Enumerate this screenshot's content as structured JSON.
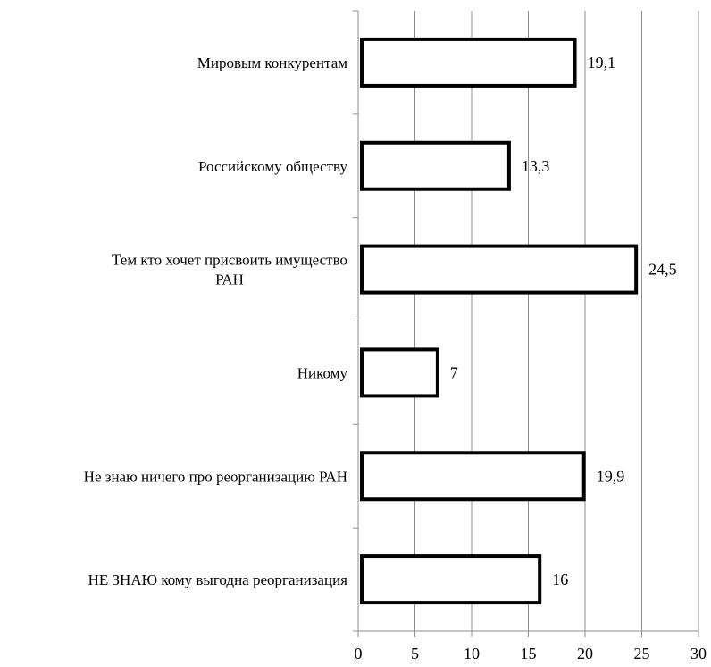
{
  "chart_data": {
    "type": "bar",
    "orientation": "horizontal",
    "categories": [
      [
        "Мировым конкурентам"
      ],
      [
        "Российскому обществу"
      ],
      [
        "Тем кто хочет присвоить имущество",
        "РАН"
      ],
      [
        "Никому"
      ],
      [
        "Не знаю ничего про реорганизацию РАН"
      ],
      [
        "НЕ ЗНАЮ кому выгодна реорганизация"
      ]
    ],
    "values": [
      19.1,
      13.3,
      24.5,
      7,
      19.9,
      16
    ],
    "value_labels": [
      "19,1",
      "13,3",
      "24,5",
      "7",
      "19,9",
      "16"
    ],
    "xlim": [
      0,
      30
    ],
    "xticks": [
      0,
      5,
      10,
      15,
      20,
      25,
      30
    ],
    "xtick_labels": [
      "0",
      "5",
      "10",
      "15",
      "20",
      "25",
      "30"
    ],
    "grid": true,
    "bar_fill": "#ffffff",
    "bar_stroke": "#000000",
    "title": "",
    "xlabel": "",
    "ylabel": ""
  }
}
